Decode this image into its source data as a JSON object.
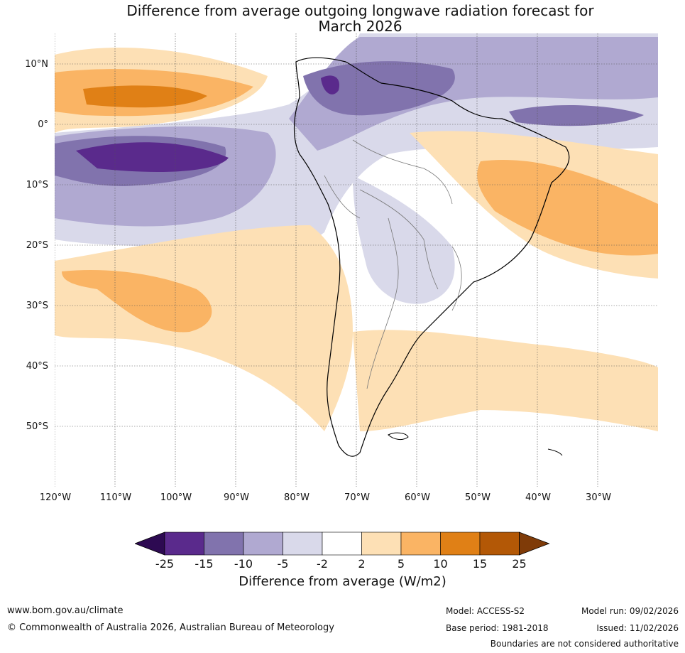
{
  "title_line1": "Difference from average outgoing longwave radiation forecast for",
  "title_line2": "March 2026",
  "lat_labels": [
    "10°N",
    "0°",
    "10°S",
    "20°S",
    "30°S",
    "40°S",
    "50°S"
  ],
  "lon_labels": [
    "120°W",
    "110°W",
    "100°W",
    "90°W",
    "80°W",
    "70°W",
    "60°W",
    "50°W",
    "40°W",
    "30°W"
  ],
  "colorbar": {
    "boundaries": [
      "-25",
      "-15",
      "-10",
      "-5",
      "-2",
      "2",
      "5",
      "10",
      "15",
      "25"
    ],
    "colors": [
      "#2d0a52",
      "#5a2a8c",
      "#8173ad",
      "#b0a9d1",
      "#d9d9ea",
      "#ffffff",
      "#fde0b5",
      "#fab464",
      "#e08016",
      "#b35806",
      "#7f3b08"
    ],
    "title": "Difference from average (W/m2)"
  },
  "footer": {
    "website": "www.bom.gov.au/climate",
    "copyright": "© Commonwealth of Australia 2026, Australian Bureau of Meteorology",
    "model": "Model: ACCESS-S2",
    "base_period": "Base period: 1981-2018",
    "model_run": "Model run: 09/02/2026",
    "issued": "Issued: 11/02/2026",
    "disclaimer": "Boundaries are not considered authoritative"
  }
}
